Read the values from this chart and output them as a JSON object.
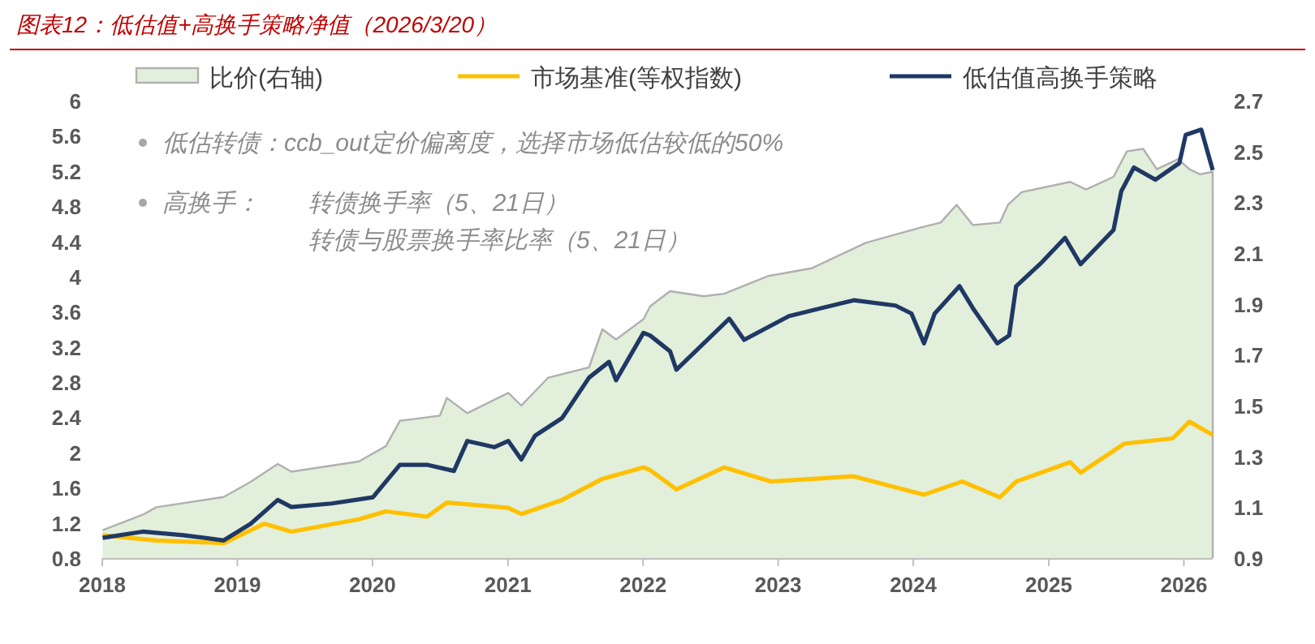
{
  "chart_data": {
    "type": "line",
    "title": "图表12：低估值+高换手策略净值（2026/3/20）",
    "xlim": [
      "2018-01-01",
      "2026-03-20"
    ],
    "xticks": [
      "2018",
      "2019",
      "2020",
      "2021",
      "2022",
      "2023",
      "2024",
      "2025",
      "2026"
    ],
    "ylim": [
      0.8,
      6
    ],
    "yticks": [
      0.8,
      1.2,
      1.6,
      2,
      2.4,
      2.8,
      3.2,
      3.6,
      4,
      4.4,
      4.8,
      5.2,
      5.6,
      6
    ],
    "y2lim": [
      0.9,
      2.7
    ],
    "y2ticks": [
      0.9,
      1.1,
      1.3,
      1.5,
      1.7,
      1.9,
      2.1,
      2.3,
      2.5,
      2.7
    ],
    "legend": "top",
    "grid": false,
    "annotations": [
      "低估转债：ccb_out定价偏离度，选择市场低估较低的50%",
      "高换手：",
      "转债换手率（5、21日）",
      "转债与股票换手率比率（5、21日）"
    ],
    "series": [
      {
        "name": "比价(右轴)",
        "type": "area",
        "axis": "y2",
        "color": "#e2efda",
        "x": [
          "2018-01-02",
          "2018-04-20",
          "2018-05-27",
          "2018-11-25",
          "2019-02-06",
          "2019-04-20",
          "2019-05-27",
          "2019-11-25",
          "2020-02-06",
          "2020-03-15",
          "2020-07-01",
          "2020-07-20",
          "2020-09-13",
          "2021-01-02",
          "2021-02-06",
          "2021-04-20",
          "2021-08-08",
          "2021-09-13",
          "2021-10-20",
          "2022-01-02",
          "2022-01-20",
          "2022-03-15",
          "2022-06-14",
          "2022-08-08",
          "2022-12-06",
          "2023-04-01",
          "2023-08-26",
          "2024-01-20",
          "2024-03-15",
          "2024-04-27",
          "2024-06-10",
          "2024-08-22",
          "2024-09-13",
          "2024-10-20",
          "2025-02-28",
          "2025-04-12",
          "2025-06-25",
          "2025-07-31",
          "2025-09-13",
          "2025-10-20",
          "2025-12-17",
          "2026-01-16",
          "2026-02-14",
          "2026-03-20"
        ],
        "values": [
          1.01,
          1.07,
          1.1,
          1.14,
          1.2,
          1.27,
          1.24,
          1.28,
          1.34,
          1.44,
          1.46,
          1.53,
          1.47,
          1.55,
          1.5,
          1.61,
          1.65,
          1.8,
          1.76,
          1.84,
          1.89,
          1.95,
          1.93,
          1.94,
          2.01,
          2.04,
          2.14,
          2.2,
          2.22,
          2.29,
          2.21,
          2.22,
          2.29,
          2.34,
          2.38,
          2.35,
          2.4,
          2.5,
          2.51,
          2.43,
          2.47,
          2.43,
          2.41,
          2.42
        ]
      },
      {
        "name": "市场基准(等权指数)",
        "color": "#ffc000",
        "x": [
          "2018-01-02",
          "2018-05-27",
          "2018-11-25",
          "2019-03-15",
          "2019-05-27",
          "2019-11-25",
          "2020-02-06",
          "2020-05-27",
          "2020-07-20",
          "2021-01-02",
          "2021-02-06",
          "2021-05-27",
          "2021-09-13",
          "2022-01-02",
          "2022-01-20",
          "2022-04-01",
          "2022-08-08",
          "2022-12-13",
          "2023-07-24",
          "2024-01-30",
          "2024-05-12",
          "2024-08-22",
          "2024-10-05",
          "2025-02-28",
          "2025-03-28",
          "2025-07-24",
          "2025-12-02",
          "2026-01-16",
          "2026-03-20"
        ],
        "values": [
          1.06,
          1.0,
          0.97,
          1.19,
          1.1,
          1.24,
          1.33,
          1.27,
          1.43,
          1.37,
          1.3,
          1.46,
          1.7,
          1.83,
          1.8,
          1.58,
          1.83,
          1.67,
          1.73,
          1.52,
          1.67,
          1.49,
          1.67,
          1.89,
          1.77,
          2.1,
          2.16,
          2.35,
          2.2
        ]
      },
      {
        "name": "低估值高换手策略",
        "color": "#1f3864",
        "x": [
          "2018-01-02",
          "2018-04-20",
          "2018-08-08",
          "2018-11-25",
          "2019-02-06",
          "2019-04-20",
          "2019-05-27",
          "2019-09-13",
          "2020-01-02",
          "2020-03-15",
          "2020-05-27",
          "2020-08-08",
          "2020-09-13",
          "2020-11-25",
          "2021-01-02",
          "2021-02-06",
          "2021-03-15",
          "2021-05-27",
          "2021-08-08",
          "2021-10-01",
          "2021-10-20",
          "2022-01-02",
          "2022-01-20",
          "2022-03-15",
          "2022-04-01",
          "2022-08-22",
          "2022-10-01",
          "2023-01-30",
          "2023-07-24",
          "2023-11-14",
          "2023-12-27",
          "2024-01-30",
          "2024-02-28",
          "2024-05-05",
          "2024-06-10",
          "2024-08-15",
          "2024-09-16",
          "2024-10-05",
          "2024-12-13",
          "2025-02-14",
          "2025-03-28",
          "2025-06-25",
          "2025-07-16",
          "2025-08-19",
          "2025-10-16",
          "2025-12-20",
          "2026-01-06",
          "2026-02-17",
          "2026-03-20"
        ],
        "values": [
          1.03,
          1.1,
          1.06,
          1.0,
          1.19,
          1.46,
          1.38,
          1.42,
          1.49,
          1.86,
          1.86,
          1.79,
          2.13,
          2.06,
          2.13,
          1.92,
          2.19,
          2.39,
          2.85,
          3.03,
          2.82,
          3.36,
          3.33,
          3.15,
          2.94,
          3.52,
          3.28,
          3.55,
          3.73,
          3.67,
          3.58,
          3.24,
          3.58,
          3.89,
          3.64,
          3.24,
          3.33,
          3.89,
          4.16,
          4.44,
          4.14,
          4.53,
          4.97,
          5.24,
          5.1,
          5.29,
          5.61,
          5.67,
          5.21
        ]
      }
    ]
  }
}
